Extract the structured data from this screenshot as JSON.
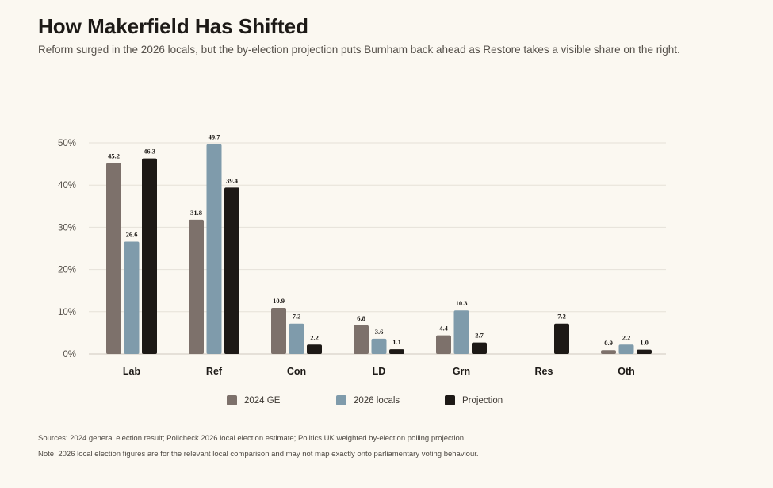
{
  "header": {
    "title": "How Makerfield Has Shifted",
    "subtitle": "Reform surged in the 2026 locals, but the by-election projection puts Burnham back ahead as Restore takes a visible share on the right."
  },
  "chart_data": {
    "type": "bar",
    "categories": [
      "Lab",
      "Ref",
      "Con",
      "LD",
      "Grn",
      "Res",
      "Oth"
    ],
    "series": [
      {
        "name": "2024 GE",
        "color": "#7d716b",
        "values": [
          45.2,
          31.8,
          10.9,
          6.8,
          4.4,
          null,
          0.9
        ]
      },
      {
        "name": "2026 locals",
        "color": "#7f9bab",
        "values": [
          26.6,
          49.7,
          7.2,
          3.6,
          10.3,
          null,
          2.2
        ]
      },
      {
        "name": "Projection",
        "color": "#1d1916",
        "values": [
          46.3,
          39.4,
          2.2,
          1.1,
          2.7,
          7.2,
          1.0
        ]
      }
    ],
    "ylim": [
      0,
      50
    ],
    "yticks": [
      "0%",
      "10%",
      "20%",
      "30%",
      "40%",
      "50%"
    ],
    "grid": true,
    "legend_position": "bottom-center"
  },
  "footer": {
    "sources": "Sources: 2024 general election result; Pollcheck 2026 local election estimate; Politics UK weighted by-election polling projection.",
    "note": "Note: 2026 local election figures are for the relevant local comparison and may not map exactly onto parliamentary voting behaviour."
  }
}
